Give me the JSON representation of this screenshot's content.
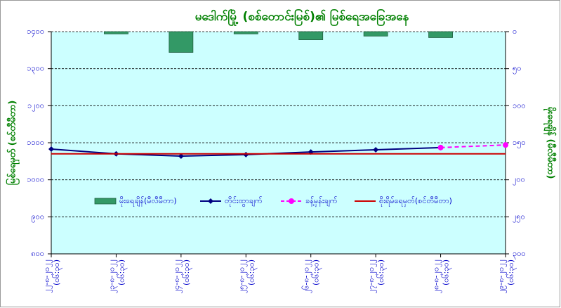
{
  "chart_data": {
    "type": "combo",
    "title": "မဒေါက်မြို့ (စစ်တောင်းမြစ်)၏ မြစ်ရေအခြေအနေ",
    "y_label": "မြစ်ရေမှတ် (စင်တီမီတာ)",
    "y2_label": "မိုးရေချိန် (မီလီမီတာ)",
    "categories": [
      "၂၂-၈-၂၀၂၂",
      "၂၃-၈-၂၀၂၂",
      "၂၄-၈-၂၀၂၂",
      "၂၅-၈-၂၀၂၂",
      "၂၆-၈-၂၀၂၂",
      "၂၇-၈-၂၀၂၂",
      "၂၈-၈-၂၀၂၂",
      "၂၉-၈-၂၀၂၂"
    ],
    "category_times": [
      "(၀၆:၃၀)",
      "(၀၆:၃၀)",
      "(၀၆:၃၀)",
      "(၀၆:၃၀)",
      "(၀၆:၃၀)",
      "(၀၆:၃၀)",
      "(၀၆:၃၀)",
      "(၀၆:၃၀)"
    ],
    "ylim": [
      800,
      1400
    ],
    "yticks": [
      {
        "value": 800,
        "label": "၈၀၀"
      },
      {
        "value": 900,
        "label": "၉၀၀"
      },
      {
        "value": 1000,
        "label": "၁၀၀၀"
      },
      {
        "value": 1100,
        "label": "၁၁၀၀"
      },
      {
        "value": 1200,
        "label": "၁၂၀၀"
      },
      {
        "value": 1300,
        "label": "၁၃၀၀"
      },
      {
        "value": 1400,
        "label": "၁၄၀၀"
      }
    ],
    "y2lim": [
      300,
      0
    ],
    "y2ticks": [
      {
        "value": 0,
        "label": "၀"
      },
      {
        "value": 50,
        "label": "၅၀"
      },
      {
        "value": 100,
        "label": "၁၀၀"
      },
      {
        "value": 150,
        "label": "၁၅၀"
      },
      {
        "value": 200,
        "label": "၂၀၀"
      },
      {
        "value": 250,
        "label": "၂၅၀"
      },
      {
        "value": 300,
        "label": "၃၀၀"
      }
    ],
    "grid": true,
    "series": [
      {
        "name": "မိုးရေချိန်(မီလီမီတာ)",
        "type": "bar",
        "axis": "y2",
        "color": "#339966",
        "values": [
          null,
          3,
          28,
          3,
          11,
          6,
          8,
          null
        ]
      },
      {
        "name": "တိုင်းထွာချက်",
        "type": "line",
        "color": "#000080",
        "marker": "diamond",
        "values": [
          1083,
          1070,
          1064,
          1068,
          1075,
          1081,
          1087,
          null
        ]
      },
      {
        "name": "ခန့်မှန်းချက်",
        "type": "line",
        "color": "#ff00ff",
        "marker": "circle",
        "dashed": true,
        "values": [
          null,
          null,
          null,
          null,
          null,
          null,
          1087,
          1094
        ]
      },
      {
        "name": "စိုးရိမ်ရေမှတ်(စင်တီမီတာ)",
        "type": "line",
        "color": "#cc0000",
        "marker": "none",
        "values": [
          1070,
          1070,
          1070,
          1070,
          1070,
          1070,
          1070,
          1070
        ]
      }
    ]
  }
}
